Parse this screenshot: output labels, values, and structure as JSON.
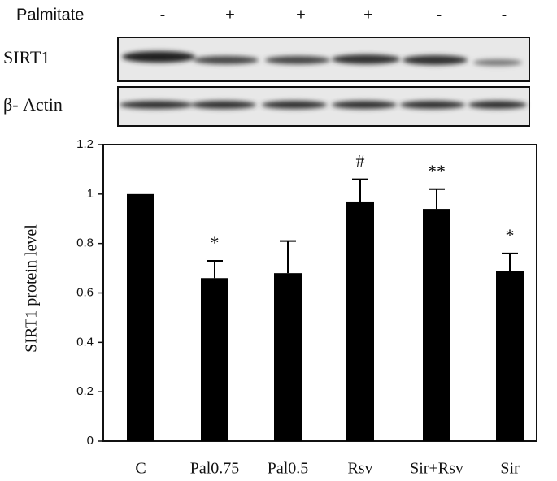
{
  "chart_data": {
    "type": "bar",
    "treatment_label": "Palmitate",
    "treatment": [
      "-",
      "+",
      "+",
      "+",
      "-",
      "-"
    ],
    "blot_labels": [
      "SIRT1",
      "β- Actin"
    ],
    "y_label": "SIRT1 protein level",
    "categories": [
      "C",
      "Pal0.75",
      "Pal0.5",
      "Rsv",
      "Sir+Rsv",
      "Sir"
    ],
    "values": [
      1.0,
      0.66,
      0.68,
      0.97,
      0.94,
      0.69
    ],
    "errors": [
      null,
      0.07,
      0.13,
      0.09,
      0.08,
      0.07
    ],
    "annotations": [
      null,
      "*",
      null,
      "#",
      "**",
      "*"
    ],
    "color": "#000000",
    "ylim": [
      0,
      1.2
    ],
    "yticks": [
      0,
      0.2,
      0.4,
      0.6,
      0.8,
      1,
      1.2
    ]
  }
}
